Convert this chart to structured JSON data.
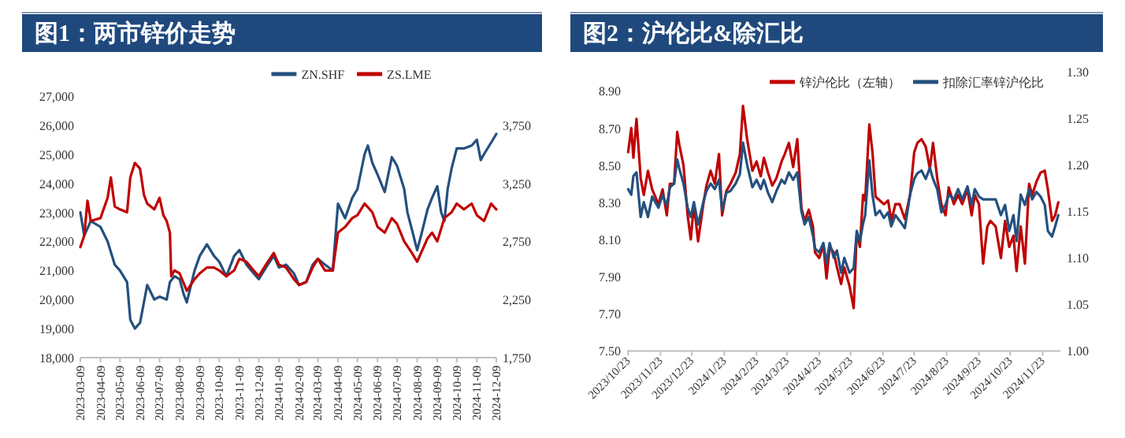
{
  "chart_data": [
    {
      "type": "line",
      "title": "图1：两市锌价走势",
      "legend": "top",
      "xlim": [
        "2023-03-09",
        "2024-12-09"
      ],
      "xticks": [
        {
          "value": "2023-03-09",
          "label": "2023-03-09"
        },
        {
          "value": "2023-04-09",
          "label": "2023-04-09"
        },
        {
          "value": "2023-05-09",
          "label": "2023-05-09"
        },
        {
          "value": "2023-06-09",
          "label": "2023-06-09"
        },
        {
          "value": "2023-07-09",
          "label": "2023-07-09"
        },
        {
          "value": "2023-08-09",
          "label": "2023-08-09"
        },
        {
          "value": "2023-09-09",
          "label": "2023-09-09"
        },
        {
          "value": "2023-10-09",
          "label": "2023-10-09"
        },
        {
          "value": "2023-11-09",
          "label": "2023-11-09"
        },
        {
          "value": "2023-12-09",
          "label": "2023-12-09"
        },
        {
          "value": "2024-01-09",
          "label": "2024-01-09"
        },
        {
          "value": "2024-02-09",
          "label": "2024-02-09"
        },
        {
          "value": "2024-03-09",
          "label": "2024-03-09"
        },
        {
          "value": "2024-04-09",
          "label": "2024-04-09"
        },
        {
          "value": "2024-05-09",
          "label": "2024-05-09"
        },
        {
          "value": "2024-06-09",
          "label": "2024-06-09"
        },
        {
          "value": "2024-07-09",
          "label": "2024-07-09"
        },
        {
          "value": "2024-08-09",
          "label": "2024-08-09"
        },
        {
          "value": "2024-09-09",
          "label": "2024-09-09"
        },
        {
          "value": "2024-10-09",
          "label": "2024-10-09"
        },
        {
          "value": "2024-11-09",
          "label": "2024-11-09"
        },
        {
          "value": "2024-12-09",
          "label": "2024-12-09"
        }
      ],
      "ylim": [
        18000,
        27000
      ],
      "yticks": [
        {
          "value": 18000,
          "label": "18,000"
        },
        {
          "value": 19000,
          "label": "19,000"
        },
        {
          "value": 20000,
          "label": "20,000"
        },
        {
          "value": 21000,
          "label": "21,000"
        },
        {
          "value": 22000,
          "label": "22,000"
        },
        {
          "value": 23000,
          "label": "23,000"
        },
        {
          "value": 24000,
          "label": "24,000"
        },
        {
          "value": 25000,
          "label": "25,000"
        },
        {
          "value": 26000,
          "label": "26,000"
        },
        {
          "value": 27000,
          "label": "27,000"
        }
      ],
      "y2lim": [
        1750,
        3750
      ],
      "y2ticks": [
        {
          "value": 1750,
          "label": "1,750"
        },
        {
          "value": 2250,
          "label": "2,250"
        },
        {
          "value": 2750,
          "label": "2,750"
        },
        {
          "value": 3250,
          "label": "3,250"
        },
        {
          "value": 3750,
          "label": "3,750"
        }
      ],
      "series": [
        {
          "name": "ZN.SHF",
          "color": "#24507e",
          "x": [
            "2023-03-09",
            "2023-03-15",
            "2023-03-25",
            "2023-04-09",
            "2023-04-20",
            "2023-05-01",
            "2023-05-09",
            "2023-05-20",
            "2023-05-25",
            "2023-06-01",
            "2023-06-09",
            "2023-06-20",
            "2023-07-01",
            "2023-07-09",
            "2023-07-20",
            "2023-07-25",
            "2023-08-01",
            "2023-08-09",
            "2023-08-15",
            "2023-08-20",
            "2023-09-01",
            "2023-09-09",
            "2023-09-20",
            "2023-10-01",
            "2023-10-09",
            "2023-10-20",
            "2023-11-01",
            "2023-11-09",
            "2023-11-20",
            "2023-12-01",
            "2023-12-09",
            "2023-12-20",
            "2024-01-01",
            "2024-01-09",
            "2024-01-20",
            "2024-02-01",
            "2024-02-09",
            "2024-02-20",
            "2024-03-01",
            "2024-03-09",
            "2024-03-20",
            "2024-04-01",
            "2024-04-09",
            "2024-04-20",
            "2024-05-01",
            "2024-05-09",
            "2024-05-20",
            "2024-05-25",
            "2024-06-01",
            "2024-06-09",
            "2024-06-20",
            "2024-07-01",
            "2024-07-09",
            "2024-07-20",
            "2024-07-25",
            "2024-08-01",
            "2024-08-09",
            "2024-08-15",
            "2024-08-25",
            "2024-09-01",
            "2024-09-09",
            "2024-09-15",
            "2024-09-20",
            "2024-09-25",
            "2024-10-01",
            "2024-10-09",
            "2024-10-20",
            "2024-11-01",
            "2024-11-09",
            "2024-11-15",
            "2024-11-20",
            "2024-12-01",
            "2024-12-09"
          ],
          "values": [
            23000,
            22200,
            22700,
            22500,
            22000,
            21200,
            21000,
            20600,
            19300,
            19000,
            19200,
            20500,
            20000,
            20100,
            20000,
            20600,
            20800,
            20700,
            20200,
            19900,
            21000,
            21500,
            21900,
            21500,
            21300,
            20800,
            21500,
            21700,
            21200,
            20900,
            20700,
            21100,
            21500,
            21100,
            21200,
            20900,
            20500,
            20600,
            21200,
            21400,
            21200,
            21000,
            23300,
            22800,
            23500,
            23800,
            25000,
            25300,
            24700,
            24300,
            23700,
            24900,
            24600,
            23800,
            23000,
            22400,
            21700,
            22200,
            23100,
            23500,
            23900,
            23000,
            22700,
            23800,
            24500,
            25200,
            25200,
            25300,
            25500,
            24800,
            25000,
            25400,
            25700
          ]
        },
        {
          "name": "ZS.LME",
          "color": "#c00000",
          "axis": "y2",
          "x": [
            "2023-03-09",
            "2023-03-15",
            "2023-03-20",
            "2023-03-25",
            "2023-04-09",
            "2023-04-20",
            "2023-04-25",
            "2023-05-01",
            "2023-05-09",
            "2023-05-20",
            "2023-05-25",
            "2023-06-01",
            "2023-06-09",
            "2023-06-15",
            "2023-06-20",
            "2023-07-01",
            "2023-07-09",
            "2023-07-15",
            "2023-07-20",
            "2023-07-25",
            "2023-07-27",
            "2023-08-01",
            "2023-08-09",
            "2023-08-20",
            "2023-09-01",
            "2023-09-09",
            "2023-09-20",
            "2023-10-01",
            "2023-10-09",
            "2023-10-20",
            "2023-11-01",
            "2023-11-09",
            "2023-11-20",
            "2023-12-01",
            "2023-12-09",
            "2023-12-20",
            "2024-01-01",
            "2024-01-09",
            "2024-01-20",
            "2024-02-01",
            "2024-02-09",
            "2024-02-20",
            "2024-03-01",
            "2024-03-09",
            "2024-03-20",
            "2024-04-01",
            "2024-04-09",
            "2024-04-20",
            "2024-05-01",
            "2024-05-09",
            "2024-05-20",
            "2024-06-01",
            "2024-06-09",
            "2024-06-20",
            "2024-07-01",
            "2024-07-09",
            "2024-07-20",
            "2024-08-01",
            "2024-08-09",
            "2024-08-15",
            "2024-08-25",
            "2024-09-01",
            "2024-09-09",
            "2024-09-20",
            "2024-10-01",
            "2024-10-09",
            "2024-10-20",
            "2024-11-01",
            "2024-11-09",
            "2024-11-20",
            "2024-12-01",
            "2024-12-09"
          ],
          "values": [
            2700,
            2800,
            3100,
            2925,
            2950,
            3125,
            3300,
            3050,
            3025,
            3000,
            3300,
            3425,
            3375,
            3150,
            3075,
            3025,
            3125,
            2975,
            2925,
            2825,
            2450,
            2500,
            2475,
            2325,
            2425,
            2475,
            2525,
            2525,
            2500,
            2450,
            2500,
            2600,
            2575,
            2500,
            2450,
            2550,
            2650,
            2550,
            2525,
            2425,
            2375,
            2400,
            2525,
            2600,
            2500,
            2500,
            2825,
            2875,
            2950,
            2975,
            3075,
            3000,
            2875,
            2825,
            2950,
            2900,
            2750,
            2650,
            2575,
            2650,
            2775,
            2825,
            2750,
            2950,
            3000,
            3075,
            3025,
            3075,
            2975,
            2925,
            3075,
            3025
          ]
        }
      ]
    },
    {
      "type": "line",
      "title": "图2：沪伦比&除汇比",
      "legend": "top",
      "xlim": [
        "2023-10-22",
        "2024-12-10"
      ],
      "xticks": [
        {
          "value": "2023-10-23",
          "label": "2023/10/23"
        },
        {
          "value": "2023-11-23",
          "label": "2023/11/23"
        },
        {
          "value": "2023-12-23",
          "label": "2023/12/23"
        },
        {
          "value": "2024-01-23",
          "label": "2024/1/23"
        },
        {
          "value": "2024-02-23",
          "label": "2024/2/23"
        },
        {
          "value": "2024-03-23",
          "label": "2024/3/23"
        },
        {
          "value": "2024-04-23",
          "label": "2024/4/23"
        },
        {
          "value": "2024-05-23",
          "label": "2024/5/23"
        },
        {
          "value": "2024-06-23",
          "label": "2024/6/23"
        },
        {
          "value": "2024-07-23",
          "label": "2024/7/23"
        },
        {
          "value": "2024-08-23",
          "label": "2024/8/23"
        },
        {
          "value": "2024-09-23",
          "label": "2024/9/23"
        },
        {
          "value": "2024-10-23",
          "label": "2024/10/23"
        },
        {
          "value": "2024-11-23",
          "label": "2024/11/23"
        }
      ],
      "ylim": [
        7.5,
        8.9
      ],
      "yticks": [
        {
          "value": 7.5,
          "label": "7.50"
        },
        {
          "value": 7.7,
          "label": "7.70"
        },
        {
          "value": 7.9,
          "label": "7.90"
        },
        {
          "value": 8.1,
          "label": "8.10"
        },
        {
          "value": 8.3,
          "label": "8.30"
        },
        {
          "value": 8.5,
          "label": "8.50"
        },
        {
          "value": 8.7,
          "label": "8.70"
        },
        {
          "value": 8.9,
          "label": "8.90"
        }
      ],
      "y2lim": [
        1.0,
        1.3
      ],
      "y2ticks": [
        {
          "value": 1.0,
          "label": "1.00"
        },
        {
          "value": 1.05,
          "label": "1.05"
        },
        {
          "value": 1.1,
          "label": "1.10"
        },
        {
          "value": 1.15,
          "label": "1.15"
        },
        {
          "value": 1.2,
          "label": "1.20"
        },
        {
          "value": 1.25,
          "label": "1.25"
        },
        {
          "value": 1.3,
          "label": "1.30"
        }
      ],
      "x": [
        "2023-10-23",
        "2023-10-26",
        "2023-10-28",
        "2023-10-31",
        "2023-11-04",
        "2023-11-07",
        "2023-11-11",
        "2023-11-15",
        "2023-11-21",
        "2023-11-25",
        "2023-11-29",
        "2023-12-02",
        "2023-12-06",
        "2023-12-09",
        "2023-12-11",
        "2023-12-15",
        "2023-12-19",
        "2023-12-22",
        "2023-12-25",
        "2023-12-29",
        "2024-01-03",
        "2024-01-06",
        "2024-01-10",
        "2024-01-14",
        "2024-01-18",
        "2024-01-21",
        "2024-01-25",
        "2024-01-29",
        "2024-02-03",
        "2024-02-07",
        "2024-02-10",
        "2024-02-14",
        "2024-02-19",
        "2024-02-23",
        "2024-02-27",
        "2024-03-01",
        "2024-03-05",
        "2024-03-09",
        "2024-03-13",
        "2024-03-18",
        "2024-03-21",
        "2024-03-25",
        "2024-03-29",
        "2024-04-02",
        "2024-04-06",
        "2024-04-09",
        "2024-04-13",
        "2024-04-17",
        "2024-04-19",
        "2024-04-23",
        "2024-04-27",
        "2024-04-30",
        "2024-05-03",
        "2024-05-07",
        "2024-05-10",
        "2024-05-14",
        "2024-05-17",
        "2024-05-22",
        "2024-05-26",
        "2024-05-29",
        "2024-06-01",
        "2024-06-04",
        "2024-06-06",
        "2024-06-10",
        "2024-06-13",
        "2024-06-16",
        "2024-06-20",
        "2024-06-24",
        "2024-06-28",
        "2024-07-01",
        "2024-07-05",
        "2024-07-09",
        "2024-07-14",
        "2024-07-19",
        "2024-07-23",
        "2024-07-26",
        "2024-07-30",
        "2024-08-03",
        "2024-08-07",
        "2024-08-10",
        "2024-08-14",
        "2024-08-18",
        "2024-08-22",
        "2024-08-25",
        "2024-08-30",
        "2024-09-03",
        "2024-09-07",
        "2024-09-12",
        "2024-09-16",
        "2024-09-19",
        "2024-09-23",
        "2024-09-27",
        "2024-10-01",
        "2024-10-04",
        "2024-10-09",
        "2024-10-14",
        "2024-10-18",
        "2024-10-22",
        "2024-10-26",
        "2024-10-29",
        "2024-11-02",
        "2024-11-06",
        "2024-11-10",
        "2024-11-13",
        "2024-11-17",
        "2024-11-21",
        "2024-11-25",
        "2024-11-28",
        "2024-12-02",
        "2024-12-05",
        "2024-12-08"
      ],
      "series": [
        {
          "name": "锌沪伦比（左轴）",
          "color": "#c00000",
          "values": [
            8.57,
            8.7,
            8.54,
            8.75,
            8.43,
            8.34,
            8.47,
            8.37,
            8.29,
            8.37,
            8.23,
            8.4,
            8.4,
            8.68,
            8.61,
            8.5,
            8.23,
            8.1,
            8.29,
            8.09,
            8.29,
            8.39,
            8.47,
            8.4,
            8.56,
            8.23,
            8.36,
            8.4,
            8.46,
            8.56,
            8.82,
            8.64,
            8.47,
            8.52,
            8.44,
            8.54,
            8.46,
            8.39,
            8.43,
            8.52,
            8.56,
            8.62,
            8.49,
            8.64,
            8.27,
            8.2,
            8.26,
            8.17,
            8.03,
            8.0,
            8.07,
            7.89,
            8.06,
            8.03,
            7.95,
            7.86,
            7.95,
            7.85,
            7.73,
            8.14,
            8.06,
            8.34,
            8.31,
            8.72,
            8.57,
            8.33,
            8.31,
            8.29,
            8.31,
            8.2,
            8.29,
            8.29,
            8.21,
            8.34,
            8.57,
            8.62,
            8.64,
            8.6,
            8.48,
            8.62,
            8.43,
            8.29,
            8.23,
            8.38,
            8.29,
            8.34,
            8.29,
            8.37,
            8.23,
            8.34,
            8.29,
            7.97,
            8.17,
            8.2,
            8.17,
            8.0,
            8.2,
            8.06,
            8.12,
            7.93,
            8.17,
            7.97,
            8.4,
            8.34,
            8.41,
            8.46,
            8.47,
            8.37,
            8.2,
            8.23,
            8.3
          ]
        },
        {
          "name": "扣除汇率锌沪伦比",
          "color": "#24507e",
          "axis": "y2",
          "values": [
            1.174,
            1.168,
            1.188,
            1.192,
            1.144,
            1.16,
            1.144,
            1.166,
            1.154,
            1.168,
            1.156,
            1.176,
            1.18,
            1.206,
            1.196,
            1.18,
            1.154,
            1.144,
            1.16,
            1.136,
            1.16,
            1.172,
            1.18,
            1.174,
            1.184,
            1.152,
            1.17,
            1.172,
            1.18,
            1.19,
            1.224,
            1.2,
            1.176,
            1.184,
            1.174,
            1.184,
            1.17,
            1.16,
            1.172,
            1.184,
            1.18,
            1.192,
            1.184,
            1.192,
            1.15,
            1.136,
            1.144,
            1.124,
            1.11,
            1.106,
            1.116,
            1.094,
            1.116,
            1.1,
            1.108,
            1.084,
            1.1,
            1.084,
            1.089,
            1.129,
            1.118,
            1.137,
            1.146,
            1.205,
            1.168,
            1.146,
            1.151,
            1.143,
            1.149,
            1.134,
            1.146,
            1.14,
            1.132,
            1.168,
            1.185,
            1.191,
            1.194,
            1.185,
            1.197,
            1.185,
            1.174,
            1.149,
            1.157,
            1.168,
            1.163,
            1.174,
            1.163,
            1.177,
            1.157,
            1.174,
            1.166,
            1.163,
            1.163,
            1.163,
            1.163,
            1.146,
            1.157,
            1.129,
            1.146,
            1.118,
            1.168,
            1.157,
            1.174,
            1.163,
            1.171,
            1.166,
            1.157,
            1.129,
            1.123,
            1.134,
            1.146
          ]
        }
      ]
    }
  ]
}
